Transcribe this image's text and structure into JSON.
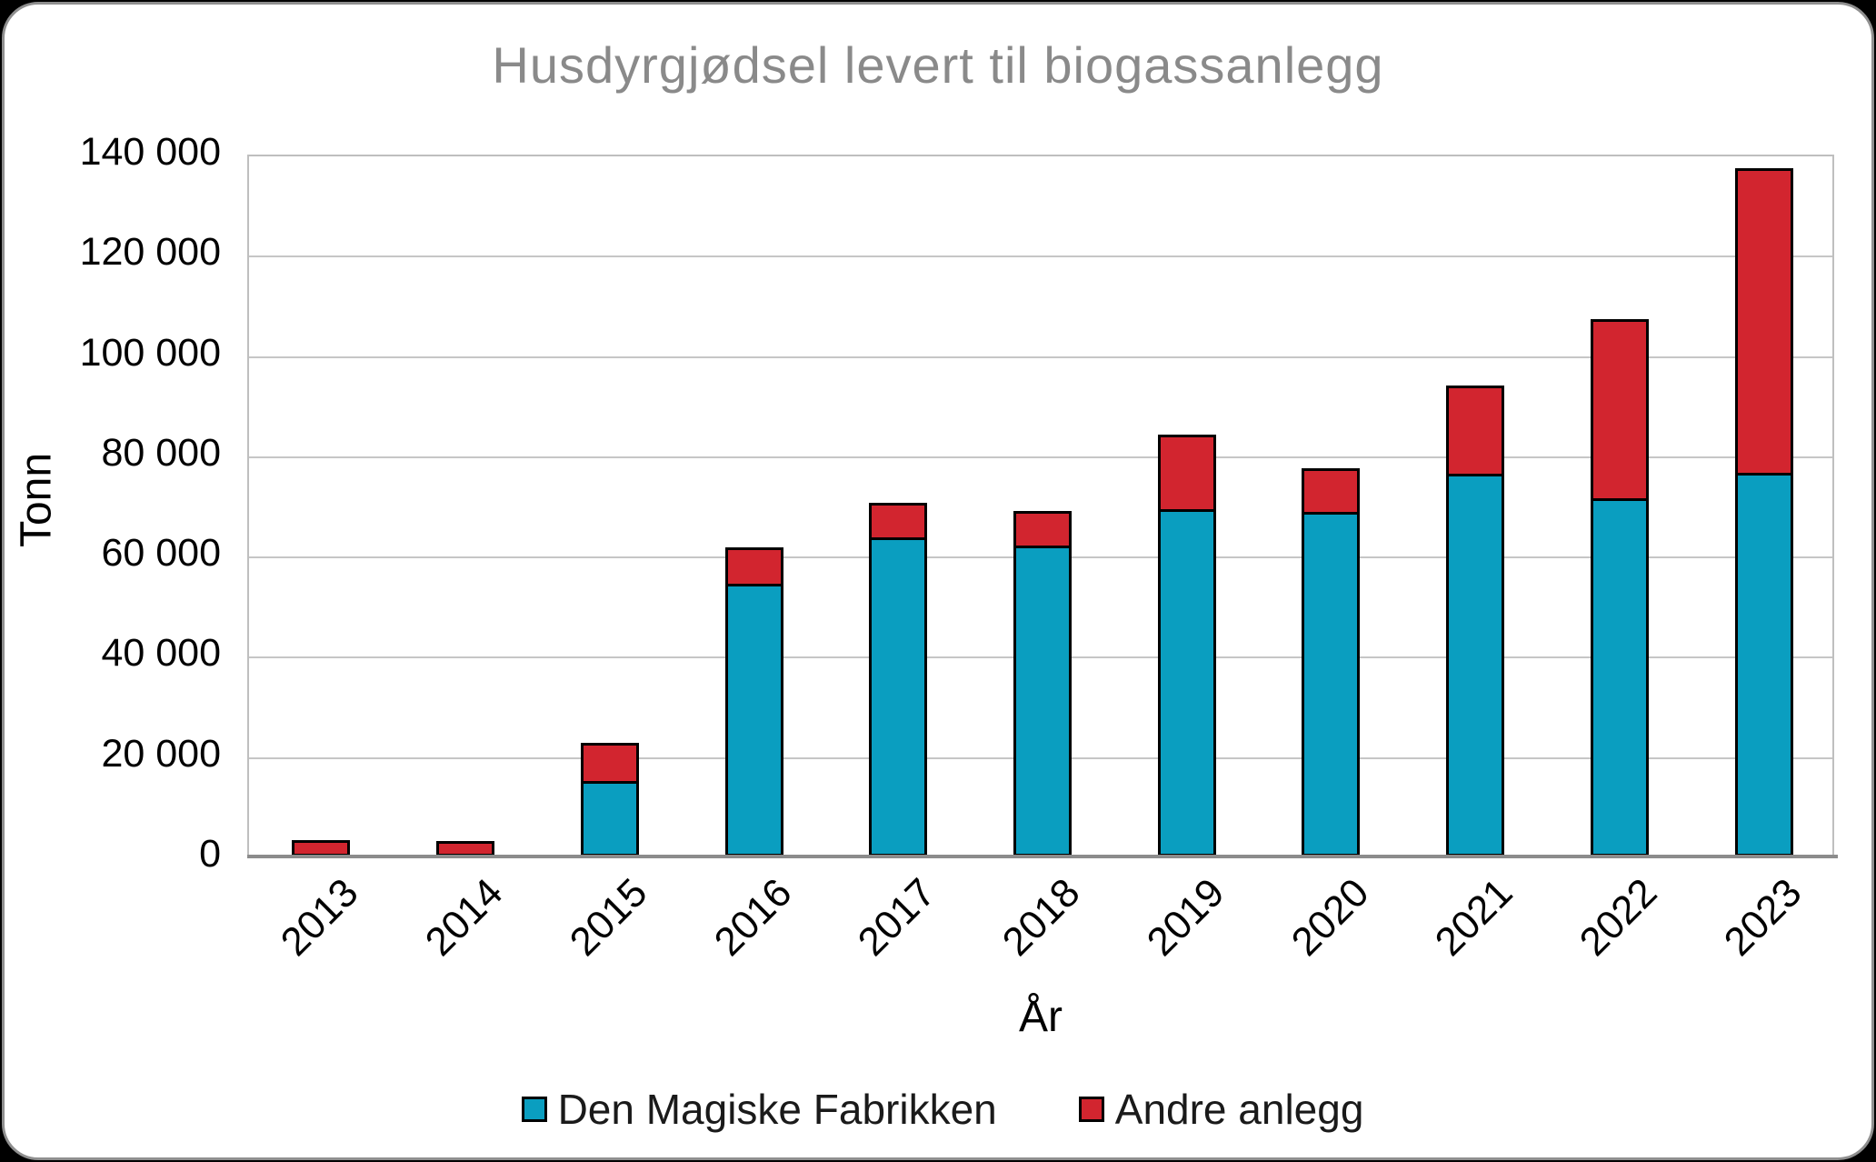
{
  "chart_data": {
    "type": "bar",
    "stacked": true,
    "title": "Husdyrgjødsel levert til biogassanlegg",
    "xlabel": "År",
    "ylabel": "Tonn",
    "ylim": [
      0,
      140000
    ],
    "grid": true,
    "legend_position": "bottom-center",
    "categories": [
      "2013",
      "2014",
      "2015",
      "2016",
      "2017",
      "2018",
      "2019",
      "2020",
      "2021",
      "2022",
      "2023"
    ],
    "yticks": [
      "0",
      "20 000",
      "40 000",
      "60 000",
      "80 000",
      "100 000",
      "120 000",
      "140 000"
    ],
    "series": [
      {
        "name": "Den Magiske Fabrikken",
        "color": "#0a9ec0",
        "values": [
          0,
          0,
          15000,
          54400,
          63600,
          62100,
          69200,
          68800,
          76400,
          71500,
          76500
        ]
      },
      {
        "name": "Andre anlegg",
        "color": "#d2252f",
        "values": [
          3300,
          3000,
          7600,
          7300,
          6900,
          6900,
          14900,
          8600,
          17500,
          35600,
          60800
        ]
      }
    ]
  },
  "colors": {
    "title_text": "#8a8a8a",
    "gridline": "#c6c6c6",
    "axis_line": "#8c8c8c",
    "bar_border": "#000000",
    "panel_background": "#ffffff",
    "page_background": "#000000"
  }
}
